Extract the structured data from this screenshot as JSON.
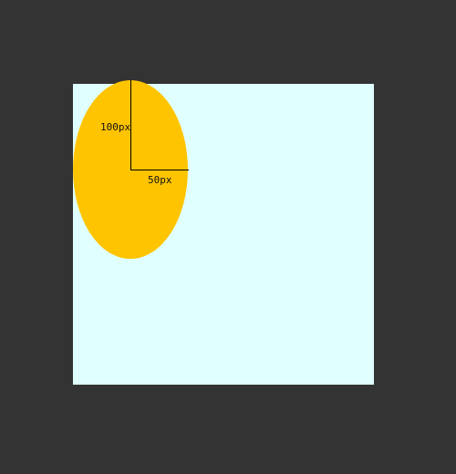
{
  "colors": {
    "backdrop": "#333333",
    "box": "#e0ffff",
    "ellipse": "#ffc400",
    "radius_lines": "#000000"
  },
  "diagram": {
    "vertical_radius_label": "100px",
    "horizontal_radius_label": "50px"
  }
}
